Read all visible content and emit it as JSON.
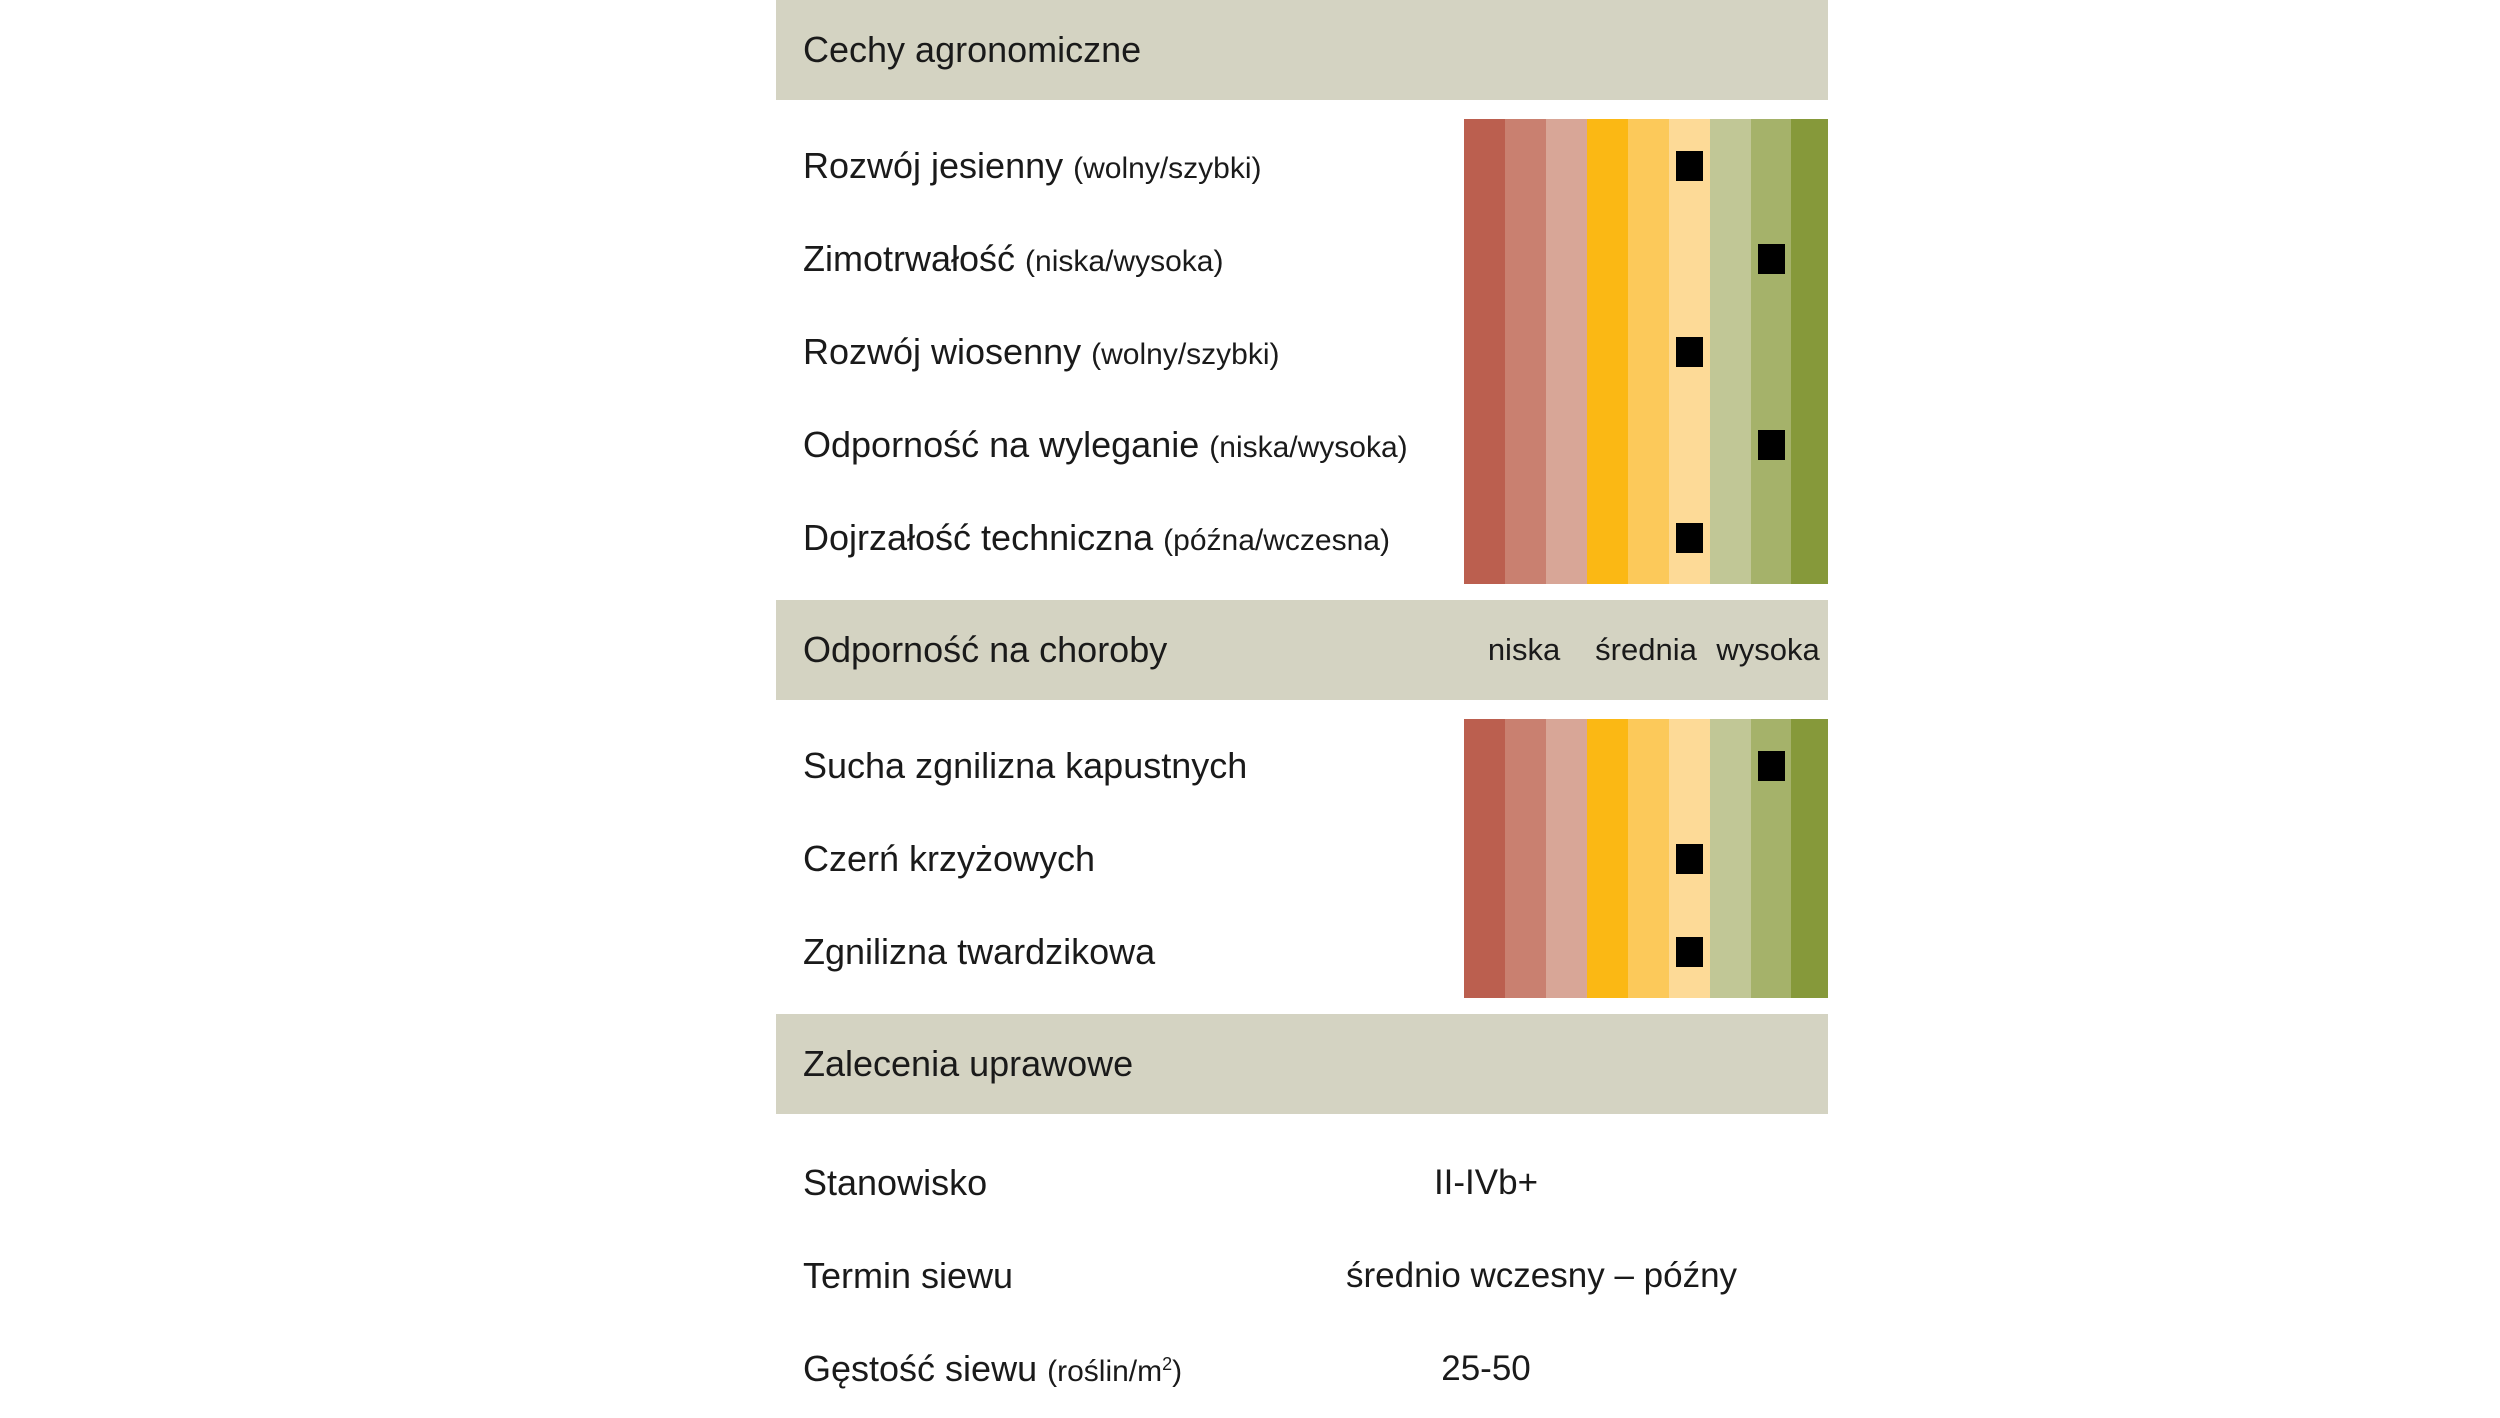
{
  "scale_colors": [
    "#bb5f4f",
    "#c98070",
    "#d8a697",
    "#fbb814",
    "#fcc95a",
    "#fdda97",
    "#c1c796",
    "#a5b26a",
    "#86993a"
  ],
  "marker_color": "#000000",
  "sections": {
    "agronomic": {
      "title": "Cechy agronomiczne",
      "rows": [
        {
          "name": "Rozwój jesienny",
          "hint": "(wolny/szybki)",
          "rating": 6
        },
        {
          "name": "Zimotrwałość",
          "hint": "(niska/wysoka)",
          "rating": 8
        },
        {
          "name": "Rozwój wiosenny",
          "hint": "(wolny/szybki)",
          "rating": 6
        },
        {
          "name": "Odporność na wyleganie",
          "hint": "(niska/wysoka)",
          "rating": 8
        },
        {
          "name": "Dojrzałość techniczna",
          "hint": "(późna/wczesna)",
          "rating": 6
        }
      ]
    },
    "disease": {
      "title": "Odporność na choroby",
      "scale_labels": [
        "niska",
        "średnia",
        "wysoka"
      ],
      "rows": [
        {
          "name": "Sucha zgnilizna kapustnych",
          "rating": 8
        },
        {
          "name": "Czerń krzyżowych",
          "rating": 6
        },
        {
          "name": "Zgnilizna twardzikowa",
          "rating": 6
        }
      ]
    },
    "recommendations": {
      "title": "Zalecenia uprawowe",
      "rows": [
        {
          "name": "Stanowisko",
          "value": "II-IVb+"
        },
        {
          "name": "Termin siewu",
          "value": "średnio wczesny – późny"
        },
        {
          "name": "Gęstość siewu",
          "unit_text": "(roślin/m",
          "unit_exponent": "2",
          "unit_close": ")",
          "value": "25-50"
        }
      ]
    }
  }
}
